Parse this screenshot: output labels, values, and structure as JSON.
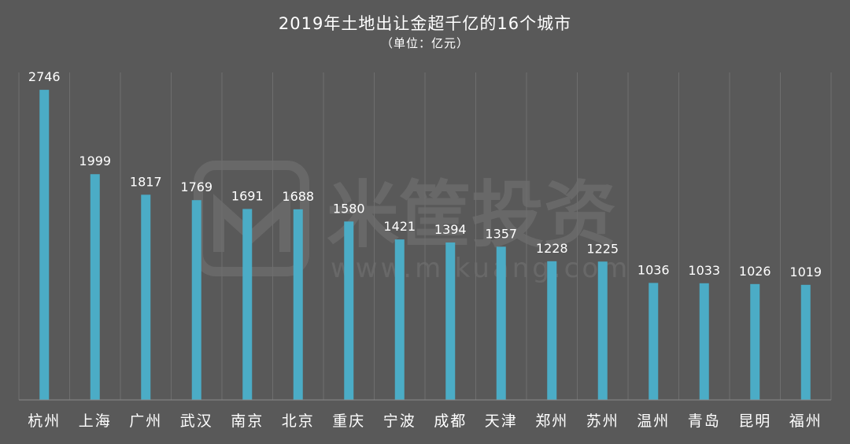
{
  "chart_data": {
    "type": "bar",
    "title": "2019年土地出让金超千亿的16个城市",
    "subtitle": "（单位：亿元）",
    "categories": [
      "杭州",
      "上海",
      "广州",
      "武汉",
      "南京",
      "北京",
      "重庆",
      "宁波",
      "成都",
      "天津",
      "郑州",
      "苏州",
      "温州",
      "青岛",
      "昆明",
      "福州"
    ],
    "values": [
      2746,
      1999,
      1817,
      1769,
      1691,
      1688,
      1580,
      1421,
      1394,
      1357,
      1228,
      1225,
      1036,
      1033,
      1026,
      1019
    ],
    "xlabel": "",
    "ylabel": "",
    "ylim": [
      0,
      2900
    ],
    "grid": "vertical",
    "bar_color": "#4bacc6"
  },
  "watermark": {
    "brand": "米筐投资",
    "url": "www.mikuang.com"
  },
  "colors": {
    "background": "#595959",
    "grid": "#6e6e6e",
    "axis": "#8a8a8a",
    "text": "#ffffff"
  }
}
